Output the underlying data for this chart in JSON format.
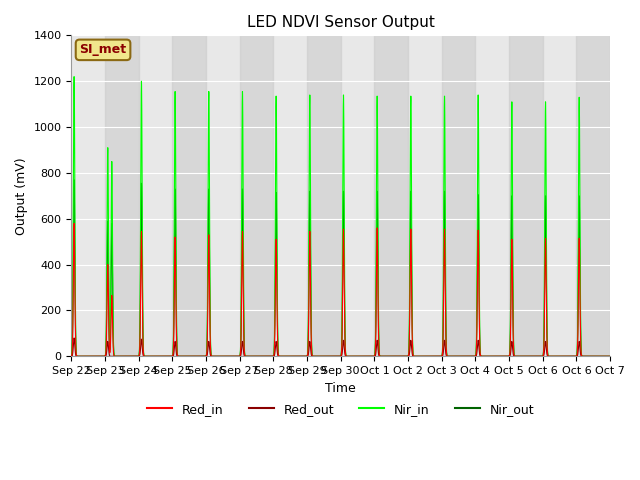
{
  "title": "LED NDVI Sensor Output",
  "xlabel": "Time",
  "ylabel": "Output (mV)",
  "ylim": [
    0,
    1400
  ],
  "yticks": [
    0,
    200,
    400,
    600,
    800,
    1000,
    1200,
    1400
  ],
  "bg_color": "#e8e8e8",
  "annotation_text": "SI_met",
  "annotation_bg": "#f0e68c",
  "annotation_border": "#8b6914",
  "annotation_text_color": "#8b0000",
  "red_in_color": "#ff0000",
  "red_out_color": "#8b0000",
  "nir_in_color": "#00ff00",
  "nir_out_color": "#006400",
  "n_cycles": 16,
  "tick_labels": [
    "Sep 22",
    "Sep 23",
    "Sep 24",
    "Sep 25",
    "Sep 26",
    "Sep 27",
    "Sep 28",
    "Sep 29",
    "Sep 30",
    "Oct 1",
    "Oct 2",
    "Oct 3",
    "Oct 4",
    "Oct 5",
    "Oct 6",
    "Oct 6",
    "Oct 7"
  ],
  "red_in_peaks": [
    580,
    400,
    545,
    520,
    530,
    545,
    510,
    545,
    555,
    560,
    555,
    555,
    550,
    510,
    515,
    515
  ],
  "red_out_peaks": [
    80,
    65,
    75,
    65,
    65,
    65,
    65,
    65,
    70,
    70,
    70,
    70,
    70,
    65,
    65,
    65
  ],
  "nir_in_peaks": [
    1220,
    910,
    1200,
    1155,
    1155,
    1155,
    1135,
    1140,
    1140,
    1135,
    1135,
    1135,
    1140,
    1110,
    1110,
    1130
  ],
  "nir_out_peaks": [
    770,
    590,
    755,
    730,
    730,
    730,
    715,
    720,
    720,
    720,
    720,
    720,
    705,
    700,
    700,
    700
  ],
  "nir_in_peak2": [
    0,
    850,
    0,
    0,
    0,
    0,
    0,
    0,
    0,
    0,
    0,
    0,
    0,
    0,
    0,
    0
  ],
  "nir_out_peak2": [
    0,
    580,
    0,
    0,
    0,
    0,
    0,
    0,
    0,
    0,
    0,
    0,
    0,
    0,
    0,
    0
  ],
  "red_in_peak2": [
    0,
    266,
    0,
    0,
    0,
    0,
    0,
    0,
    0,
    0,
    0,
    0,
    0,
    0,
    0,
    0
  ]
}
